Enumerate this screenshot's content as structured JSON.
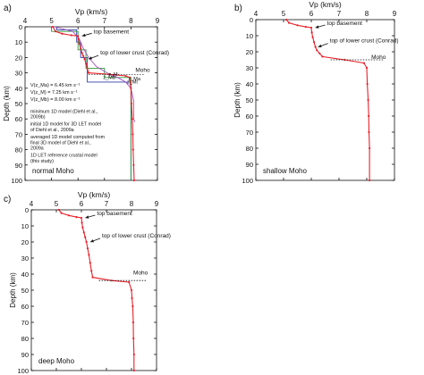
{
  "chart_data": [
    {
      "panel": "a)",
      "type": "line",
      "xlabel": "Vp (km/s)",
      "ylabel": "Depth (km)",
      "xlim": [
        4,
        9
      ],
      "ylim": [
        100,
        0
      ],
      "x_ticks": [
        4,
        5,
        6,
        7,
        8,
        9
      ],
      "y_ticks": [
        0,
        10,
        20,
        30,
        40,
        50,
        60,
        70,
        80,
        90,
        100
      ],
      "grid": false,
      "panel_label": "normal Moho",
      "series": [
        {
          "name": "minimum 1D model (Diehl et al., 2009b)",
          "color": "#2b3fa8",
          "x": [
            5.2,
            5.2,
            5.95,
            5.95,
            6.1,
            6.1,
            6.35,
            6.35,
            8.0,
            8.0
          ],
          "y": [
            0,
            2,
            2,
            10,
            10,
            20,
            20,
            36,
            36,
            100
          ]
        },
        {
          "name": "initial 1D model for 3D LET model of Diehl et al., 2009a",
          "color": "#2a9a3c",
          "x": [
            5.0,
            5.0,
            6.0,
            6.0,
            6.3,
            6.3,
            7.0,
            7.0,
            8.0,
            8.0
          ],
          "y": [
            0,
            3,
            3,
            15,
            15,
            27,
            27,
            33,
            33,
            100
          ]
        },
        {
          "name": "averaged 1D model computed from final 3D model of Diehl et al., 2009a",
          "color": "#a24fc1",
          "x": [
            5.1,
            5.8,
            6.05,
            6.2,
            6.4,
            6.7,
            7.1,
            7.5,
            7.8,
            8.0,
            8.1,
            8.1,
            8.15
          ],
          "y": [
            0,
            3,
            8,
            14,
            20,
            26,
            30,
            33,
            36,
            40,
            48,
            60,
            62
          ]
        },
        {
          "name": "1D LET reference crustal model (this study)",
          "color": "#e8212b",
          "x": [
            5.05,
            5.15,
            5.4,
            5.75,
            6.0,
            6.02,
            6.05,
            6.1,
            6.15,
            6.2,
            6.25,
            6.3,
            6.35,
            6.4,
            7.2,
            7.8,
            7.95,
            8.0,
            8.02,
            8.05,
            8.07,
            8.08,
            8.1,
            8.12
          ],
          "y": [
            0,
            3,
            4.5,
            5.5,
            6,
            8,
            11,
            14,
            17,
            19,
            21,
            24,
            27,
            30,
            31,
            32,
            33,
            40,
            50,
            60,
            70,
            80,
            90,
            100
          ]
        }
      ],
      "annotations": [
        {
          "text": "top basement",
          "x": 6.05,
          "y": 6
        },
        {
          "text": "top of lower crust (Conrad)",
          "x": 6.3,
          "y": 21
        },
        {
          "text": "Moho",
          "x": 8.1,
          "y": 31
        },
        {
          "text": "z_M",
          "x": 7.15,
          "y": 32
        },
        {
          "text": "z_Mb",
          "x": 6.95,
          "y": 34
        },
        {
          "text": "z_Ma",
          "x": 7.9,
          "y": 35
        },
        {
          "text": "z_Mt",
          "x": 7.85,
          "y": 37
        }
      ],
      "equations": [
        "V(z_Ma) = 6.45 km s⁻¹",
        "V(z_M) = 7.25 km s⁻¹",
        "V(z_Mb) = 8.00 km s⁻¹"
      ]
    },
    {
      "panel": "b)",
      "type": "line",
      "xlabel": "Vp (km/s)",
      "ylabel": "Depth (km)",
      "xlim": [
        4,
        9
      ],
      "ylim": [
        100,
        0
      ],
      "x_ticks": [
        4,
        5,
        6,
        7,
        8,
        9
      ],
      "y_ticks": [
        0,
        10,
        20,
        30,
        40,
        50,
        60,
        70,
        80,
        90,
        100
      ],
      "grid": false,
      "panel_label": "shallow Moho",
      "moho_depth": 25,
      "series": [
        {
          "name": "",
          "color": "#e8212b",
          "x": [
            5.1,
            5.2,
            5.5,
            5.8,
            6.0,
            6.02,
            6.05,
            6.1,
            6.15,
            6.2,
            6.3,
            6.4,
            7.2,
            7.9,
            8.0,
            8.02,
            8.05,
            8.07,
            8.08,
            8.1,
            8.1
          ],
          "y": [
            0,
            2,
            3.5,
            4.5,
            5,
            8,
            11,
            14,
            17,
            19,
            21,
            23,
            25,
            27,
            30,
            40,
            50,
            60,
            70,
            80,
            100
          ]
        }
      ],
      "annotations": [
        {
          "text": "top basement",
          "x": 6.05,
          "y": 5
        },
        {
          "text": "top of lower crust (Conrad)",
          "x": 6.15,
          "y": 17
        },
        {
          "text": "Moho",
          "x": 8.1,
          "y": 26
        }
      ]
    },
    {
      "panel": "c)",
      "type": "line",
      "xlabel": "Vp (km/s)",
      "ylabel": "Depth (km)",
      "xlim": [
        4,
        9
      ],
      "ylim": [
        100,
        0
      ],
      "x_ticks": [
        4,
        5,
        6,
        7,
        8,
        9
      ],
      "y_ticks": [
        0,
        10,
        20,
        30,
        40,
        50,
        60,
        70,
        80,
        90,
        100
      ],
      "grid": false,
      "panel_label": "deep Moho",
      "moho_depth": 44,
      "series": [
        {
          "name": "",
          "color": "#e8212b",
          "x": [
            5.1,
            5.2,
            5.5,
            5.8,
            6.0,
            6.02,
            6.05,
            6.1,
            6.15,
            6.2,
            6.25,
            6.3,
            6.35,
            6.4,
            6.45,
            7.2,
            7.9,
            8.0,
            8.02,
            8.05,
            8.07,
            8.08,
            8.1,
            8.1
          ],
          "y": [
            0,
            2,
            3.5,
            4.5,
            5,
            8,
            11,
            14,
            17,
            20,
            24,
            28,
            33,
            38,
            42,
            44,
            45,
            50,
            55,
            60,
            70,
            80,
            90,
            100
          ]
        }
      ],
      "annotations": [
        {
          "text": "top basement",
          "x": 6.05,
          "y": 5
        },
        {
          "text": "top of lower crust (Conrad)",
          "x": 6.25,
          "y": 20
        },
        {
          "text": "Moho",
          "x": 8.0,
          "y": 42
        }
      ]
    }
  ]
}
